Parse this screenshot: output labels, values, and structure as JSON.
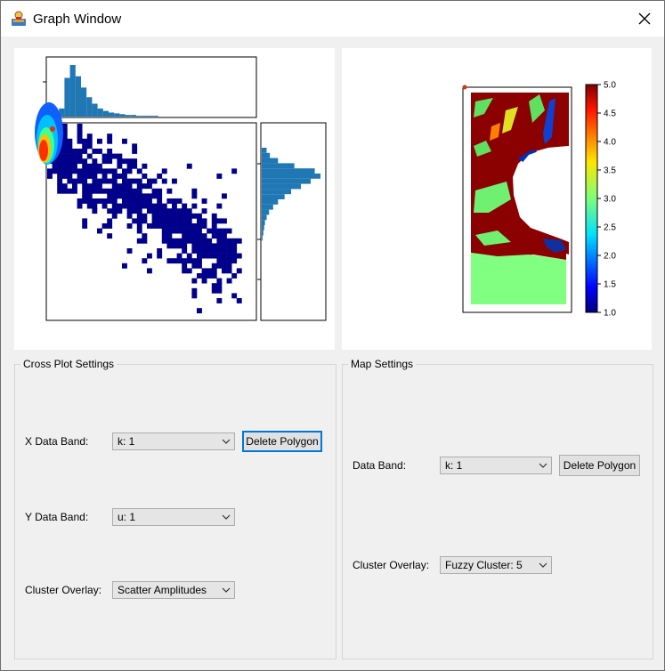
{
  "window": {
    "title": "Graph Window"
  },
  "colorbar": {
    "ticks": [
      "5.0",
      "4.5",
      "4.0",
      "3.5",
      "3.0",
      "2.5",
      "2.0",
      "1.5",
      "1.0"
    ]
  },
  "cross_plot_settings": {
    "title": "Cross Plot Settings",
    "x_band_label": "X Data Band:",
    "x_band_value": "k: 1",
    "y_band_label": "Y Data Band:",
    "y_band_value": "u: 1",
    "cluster_label": "Cluster Overlay:",
    "cluster_value": "Scatter Amplitudes",
    "delete_polygon": "Delete Polygon"
  },
  "map_settings": {
    "title": "Map Settings",
    "band_label": "Data Band:",
    "band_value": "k: 1",
    "cluster_label": "Cluster Overlay:",
    "cluster_value": "Fuzzy Cluster: 5",
    "delete_polygon": "Delete Polygon"
  },
  "colors": {
    "window_bg": "#f0f0f0",
    "hist_bar": "#1f77b4",
    "density_low": "#00008b",
    "density_high": "#ff0000",
    "focus_border": "#0078d7"
  },
  "chart_data": [
    {
      "type": "heatmap",
      "title": "",
      "description_of_axes": "no tick labels printed",
      "top_histogram": {
        "type": "bar",
        "bins": 20,
        "values": [
          4,
          10,
          48,
          64,
          50,
          36,
          24,
          16,
          10,
          7,
          5,
          4,
          3,
          2,
          2,
          1,
          1,
          1,
          1,
          0
        ]
      },
      "right_histogram": {
        "type": "bar",
        "orientation": "horizontal",
        "bins": 18,
        "values": [
          6,
          10,
          20,
          40,
          65,
          72,
          60,
          48,
          36,
          28,
          20,
          14,
          9,
          6,
          4,
          3,
          2,
          1
        ]
      }
    },
    {
      "type": "heatmap",
      "colorbar_range": [
        1.0,
        5.0
      ],
      "colorbar_ticks": [
        1.0,
        1.5,
        2.0,
        2.5,
        3.0,
        3.5,
        4.0,
        4.5,
        5.0
      ]
    }
  ]
}
